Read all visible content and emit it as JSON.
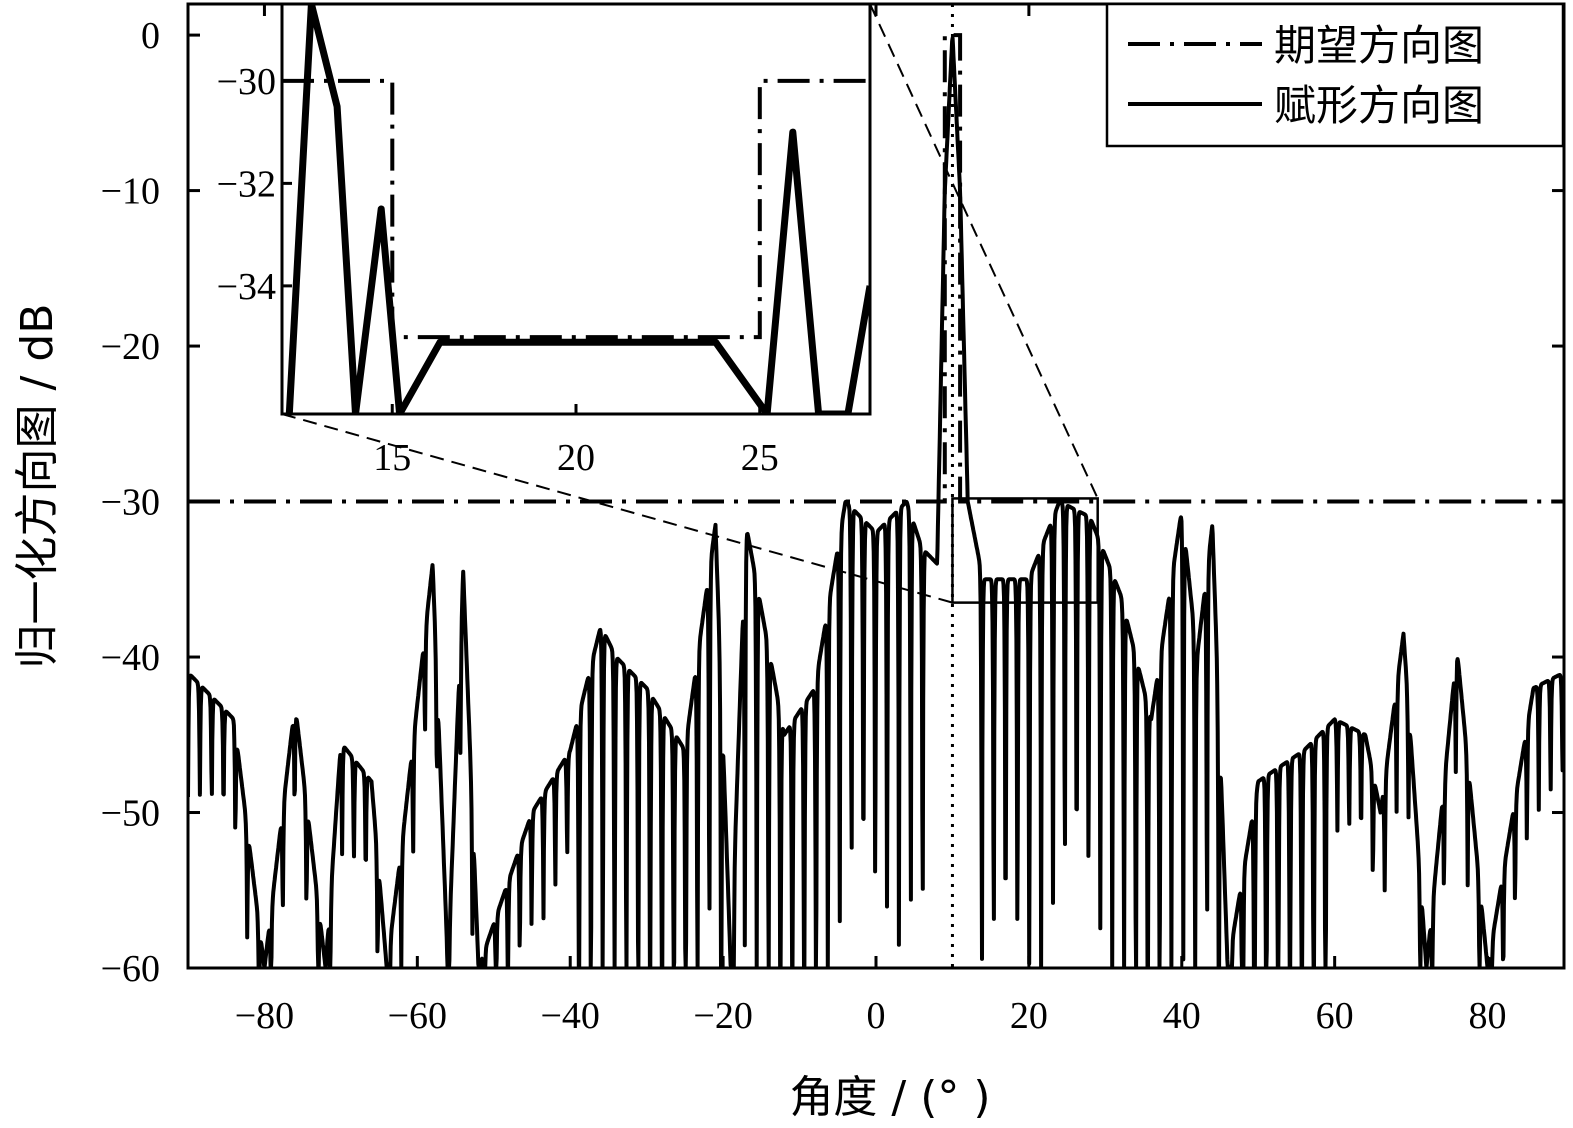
{
  "chart_data": {
    "type": "line",
    "xlabel": "角度 / (°  )",
    "ylabel": "归一化方向图 / dB",
    "xlim": [
      -90,
      90
    ],
    "ylim": [
      -60,
      2
    ],
    "xticks": [
      -80,
      -60,
      -40,
      -20,
      0,
      20,
      40,
      60,
      80
    ],
    "yticks": [
      0,
      -10,
      -20,
      -30,
      -40,
      -50,
      -60
    ],
    "xtick_labels": [
      "−80",
      "−60",
      "−40",
      "−20",
      "0",
      "20",
      "40",
      "60",
      "80"
    ],
    "ytick_labels": [
      "0",
      "−10",
      "−20",
      "−30",
      "−40",
      "−50",
      "−60"
    ],
    "grid": false,
    "legend_position": "top-right",
    "beam_pointing_deg": 10,
    "series": [
      {
        "name": "期望方向图",
        "style": "dash-dot",
        "x": [
          -90,
          9,
          9,
          11,
          11,
          90
        ],
        "y": [
          -30,
          -30,
          0,
          0,
          -30,
          -30
        ]
      },
      {
        "name": "赋形方向图",
        "style": "solid",
        "x": [
          -90,
          -84,
          -80,
          -76,
          -72,
          -70,
          -66,
          -64,
          -62,
          -58,
          -56,
          -54,
          -52,
          -45,
          -40,
          -36,
          -34,
          -30,
          -25,
          -21,
          -19,
          -17,
          -12,
          -8,
          -4,
          0,
          4,
          6,
          8,
          9,
          10,
          11,
          12,
          14,
          16,
          20,
          24,
          28,
          32,
          36,
          40,
          42,
          44,
          46,
          50,
          56,
          60,
          64,
          66,
          69,
          72,
          76,
          80,
          86,
          90
        ],
        "y": [
          -41,
          -44,
          -60,
          -43,
          -60,
          -45.5,
          -48,
          -60,
          -52,
          -34,
          -60,
          -34.5,
          -60,
          -50,
          -46,
          -38,
          -40,
          -42,
          -46,
          -31.5,
          -60,
          -31.5,
          -45,
          -42,
          -30,
          -32,
          -30,
          -33,
          -34,
          -10,
          0,
          -10,
          -30,
          -35,
          -35,
          -35,
          -30,
          -31,
          -36,
          -44,
          -30.5,
          -40,
          -31.5,
          -60,
          -48,
          -46,
          -44,
          -45,
          -50,
          -38.5,
          -60,
          -39.5,
          -60,
          -42,
          -41
        ]
      }
    ],
    "inset": {
      "xlim": [
        12,
        28
      ],
      "ylim": [
        -36.5,
        -28.5
      ],
      "xticks": [
        15,
        20,
        25
      ],
      "xtick_labels": [
        "15",
        "20",
        "25"
      ],
      "yticks": [
        -30,
        -32,
        -34
      ],
      "ytick_labels": [
        "−30",
        "−32",
        "−34"
      ],
      "desired": {
        "x": [
          12,
          15,
          15,
          25,
          25,
          28
        ],
        "y": [
          -30,
          -30,
          -35,
          -35,
          -30,
          -30
        ]
      },
      "shaped": {
        "x": [
          12.2,
          12.8,
          13.5,
          14,
          14.7,
          15.2,
          16.3,
          18.2,
          20,
          21.8,
          23.8,
          25.2,
          25.9,
          26.6,
          27.4,
          28
        ],
        "y": [
          -36.5,
          -28.5,
          -30.5,
          -36.5,
          -32.5,
          -36.5,
          -35.1,
          -35.1,
          -35.1,
          -35.1,
          -35.1,
          -36.5,
          -31,
          -36.5,
          -36.5,
          -34
        ]
      },
      "zoom_box": {
        "xlim": [
          10,
          29
        ],
        "ylim": [
          -36.5,
          -29.8
        ]
      }
    }
  }
}
